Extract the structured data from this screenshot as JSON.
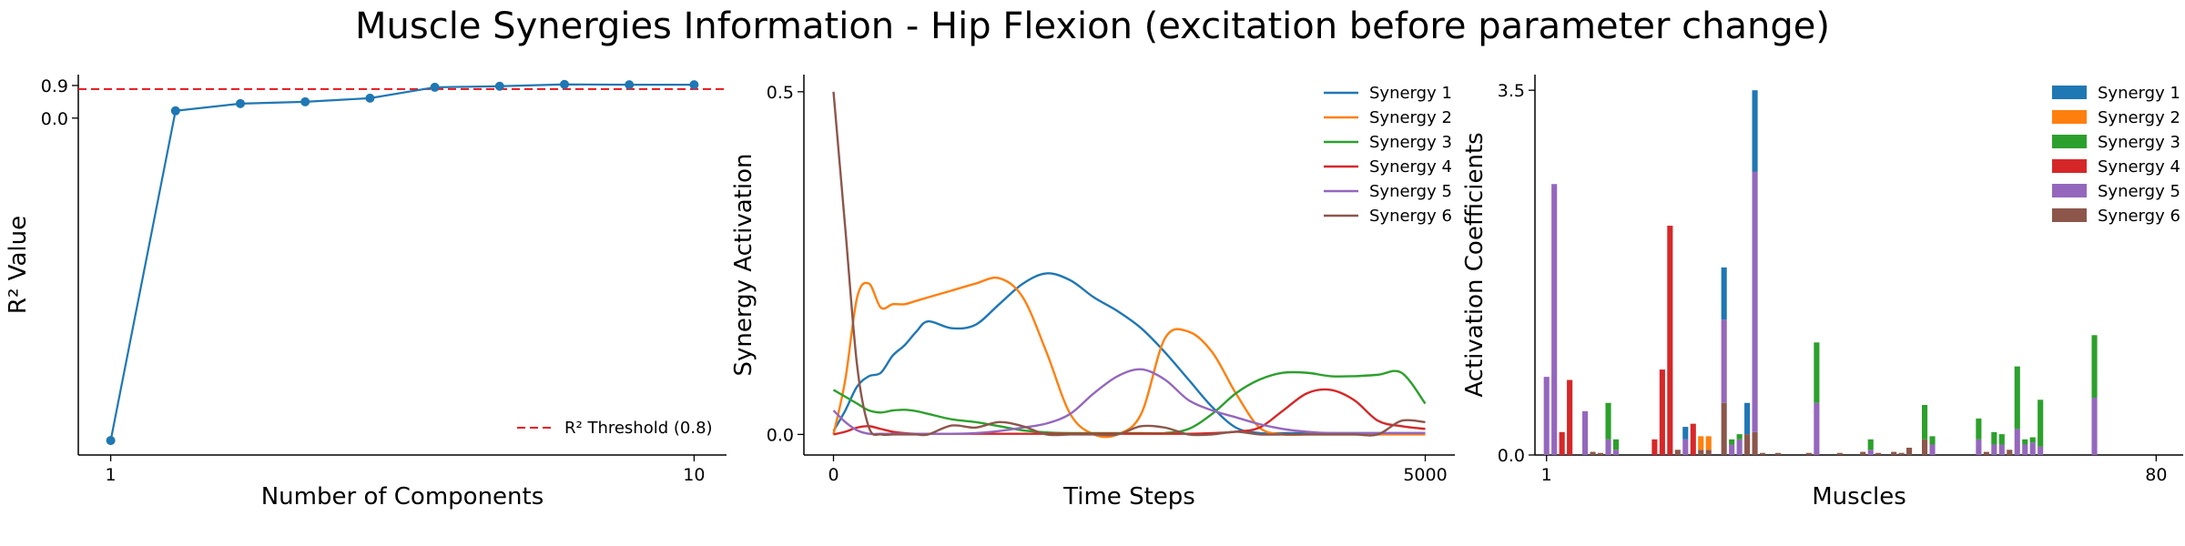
{
  "title": "Muscle Synergies Information - Hip Flexion (excitation before parameter change)",
  "colors": {
    "blue": "#1f77b4",
    "orange": "#ff7f0e",
    "green": "#2ca02c",
    "red": "#d62728",
    "purple": "#9467bd",
    "brown": "#8c564b",
    "threshold": "#e8141c",
    "axis": "#000000"
  },
  "chart_data": [
    {
      "type": "line",
      "title": "",
      "xlabel": "Number of Components",
      "ylabel": "R² Value",
      "xticks": [
        "1",
        "10"
      ],
      "yticks": [
        "0.0",
        "0.9"
      ],
      "x": [
        1,
        2,
        3,
        4,
        5,
        6,
        7,
        8,
        9,
        10
      ],
      "series": [
        {
          "values": [
            -8.9,
            0.2,
            0.4,
            0.45,
            0.55,
            0.85,
            0.88,
            0.93,
            0.92,
            0.92
          ]
        }
      ],
      "threshold": {
        "value": 0.8,
        "label": "R² Threshold (0.8)"
      },
      "xlim": [
        0.5,
        10.5
      ],
      "ylim": [
        -9.3,
        1.2
      ],
      "grid": false,
      "legend": "bottom-right"
    },
    {
      "type": "line",
      "title": "",
      "xlabel": "Time Steps",
      "ylabel": "Synergy Activation",
      "xticks": [
        "0",
        "5000"
      ],
      "yticks": [
        "0.0",
        "0.5"
      ],
      "x": [
        0,
        100,
        200,
        300,
        400,
        500,
        600,
        700,
        800,
        1000,
        1200,
        1400,
        1600,
        1800,
        2000,
        2200,
        2400,
        2600,
        2800,
        3000,
        3200,
        3400,
        3600,
        3800,
        4000,
        4200,
        4400,
        4600,
        4800,
        5000
      ],
      "series": [
        {
          "name": "Synergy 1",
          "values": [
            0.005,
            0.035,
            0.07,
            0.085,
            0.09,
            0.115,
            0.13,
            0.15,
            0.165,
            0.155,
            0.16,
            0.19,
            0.22,
            0.235,
            0.225,
            0.2,
            0.18,
            0.155,
            0.12,
            0.08,
            0.04,
            0.01,
            0.002,
            0.002,
            0.002,
            0.002,
            0.002,
            0.002,
            0.002,
            0.002
          ]
        },
        {
          "name": "Synergy 2",
          "values": [
            0.0,
            0.08,
            0.2,
            0.22,
            0.185,
            0.19,
            0.19,
            0.195,
            0.2,
            0.21,
            0.22,
            0.228,
            0.2,
            0.12,
            0.03,
            0.0,
            0.0,
            0.03,
            0.14,
            0.15,
            0.12,
            0.06,
            0.01,
            0.0,
            0.0,
            0.0,
            0.0,
            0.0,
            0.0,
            0.0
          ]
        },
        {
          "name": "Synergy 3",
          "values": [
            0.065,
            0.055,
            0.045,
            0.035,
            0.032,
            0.035,
            0.036,
            0.034,
            0.03,
            0.022,
            0.018,
            0.012,
            0.006,
            0.003,
            0.002,
            0.002,
            0.002,
            0.002,
            0.002,
            0.008,
            0.03,
            0.06,
            0.08,
            0.09,
            0.09,
            0.085,
            0.085,
            0.087,
            0.09,
            0.045
          ]
        },
        {
          "name": "Synergy 4",
          "values": [
            0.0,
            0.004,
            0.01,
            0.012,
            0.008,
            0.004,
            0.002,
            0.001,
            0.001,
            0.001,
            0.001,
            0.001,
            0.001,
            0.001,
            0.001,
            0.001,
            0.001,
            0.001,
            0.001,
            0.001,
            0.002,
            0.004,
            0.01,
            0.035,
            0.06,
            0.065,
            0.05,
            0.02,
            0.012,
            0.008
          ]
        },
        {
          "name": "Synergy 5",
          "values": [
            0.035,
            0.018,
            0.006,
            0.001,
            0.001,
            0.001,
            0.001,
            0.001,
            0.001,
            0.001,
            0.002,
            0.005,
            0.01,
            0.016,
            0.03,
            0.06,
            0.085,
            0.095,
            0.08,
            0.05,
            0.035,
            0.025,
            0.015,
            0.008,
            0.004,
            0.002,
            0.002,
            0.002,
            0.002,
            0.002
          ]
        },
        {
          "name": "Synergy 6",
          "values": [
            0.5,
            0.3,
            0.1,
            0.01,
            0.0,
            0.0,
            0.0,
            0.0,
            0.0,
            0.013,
            0.01,
            0.018,
            0.012,
            0.0,
            0.0,
            0.0,
            0.0,
            0.012,
            0.01,
            0.0,
            0.0,
            0.004,
            0.0,
            0.0,
            0.0,
            0.0,
            0.0,
            0.0,
            0.02,
            0.018
          ]
        }
      ],
      "xlim": [
        -250,
        5250
      ],
      "ylim": [
        -0.03,
        0.525
      ],
      "grid": false,
      "legend": "top-right"
    },
    {
      "type": "bar",
      "title": "",
      "xlabel": "Muscles",
      "ylabel": "Activation Coefficients",
      "xticks": [
        "1",
        "80"
      ],
      "yticks": [
        "0.0",
        "3.5"
      ],
      "stacked": true,
      "bars": [
        {
          "muscle": 1,
          "series": "Synergy 5",
          "value": 0.75
        },
        {
          "muscle": 2,
          "series": "Synergy 5",
          "value": 2.6
        },
        {
          "muscle": 3,
          "series": "Synergy 4",
          "value": 0.22
        },
        {
          "muscle": 4,
          "series": "Synergy 4",
          "value": 0.72
        },
        {
          "muscle": 6,
          "series": "Synergy 5",
          "value": 0.42
        },
        {
          "muscle": 7,
          "series": "Synergy 6",
          "value": 0.03
        },
        {
          "muscle": 8,
          "series": "Synergy 6",
          "value": 0.02
        },
        {
          "muscle": 9,
          "series": "Synergy 5",
          "value": 0.15
        },
        {
          "muscle": 9,
          "series": "Synergy 3",
          "value": 0.35
        },
        {
          "muscle": 10,
          "series": "Synergy 5",
          "value": 0.05
        },
        {
          "muscle": 10,
          "series": "Synergy 3",
          "value": 0.1
        },
        {
          "muscle": 15,
          "series": "Synergy 4",
          "value": 0.15
        },
        {
          "muscle": 16,
          "series": "Synergy 4",
          "value": 0.82
        },
        {
          "muscle": 17,
          "series": "Synergy 4",
          "value": 2.2
        },
        {
          "muscle": 18,
          "series": "Synergy 6",
          "value": 0.05
        },
        {
          "muscle": 19,
          "series": "Synergy 5",
          "value": 0.15
        },
        {
          "muscle": 19,
          "series": "Synergy 1",
          "value": 0.12
        },
        {
          "muscle": 20,
          "series": "Synergy 4",
          "value": 0.3
        },
        {
          "muscle": 21,
          "series": "Synergy 6",
          "value": 0.05
        },
        {
          "muscle": 21,
          "series": "Synergy 2",
          "value": 0.13
        },
        {
          "muscle": 22,
          "series": "Synergy 6",
          "value": 0.05
        },
        {
          "muscle": 22,
          "series": "Synergy 2",
          "value": 0.13
        },
        {
          "muscle": 24,
          "series": "Synergy 6",
          "value": 0.5
        },
        {
          "muscle": 24,
          "series": "Synergy 5",
          "value": 0.8
        },
        {
          "muscle": 24,
          "series": "Synergy 1",
          "value": 0.5
        },
        {
          "muscle": 25,
          "series": "Synergy 5",
          "value": 0.1
        },
        {
          "muscle": 25,
          "series": "Synergy 3",
          "value": 0.05
        },
        {
          "muscle": 26,
          "series": "Synergy 5",
          "value": 0.15
        },
        {
          "muscle": 26,
          "series": "Synergy 3",
          "value": 0.05
        },
        {
          "muscle": 27,
          "series": "Synergy 6",
          "value": 0.2
        },
        {
          "muscle": 27,
          "series": "Synergy 1",
          "value": 0.3
        },
        {
          "muscle": 28,
          "series": "Synergy 6",
          "value": 0.22
        },
        {
          "muscle": 28,
          "series": "Synergy 5",
          "value": 2.5
        },
        {
          "muscle": 28,
          "series": "Synergy 1",
          "value": 0.78
        },
        {
          "muscle": 29,
          "series": "Synergy 6",
          "value": 0.02
        },
        {
          "muscle": 31,
          "series": "Synergy 6",
          "value": 0.02
        },
        {
          "muscle": 35,
          "series": "Synergy 6",
          "value": 0.02
        },
        {
          "muscle": 36,
          "series": "Synergy 5",
          "value": 0.5
        },
        {
          "muscle": 36,
          "series": "Synergy 3",
          "value": 0.58
        },
        {
          "muscle": 39,
          "series": "Synergy 6",
          "value": 0.02
        },
        {
          "muscle": 42,
          "series": "Synergy 6",
          "value": 0.03
        },
        {
          "muscle": 43,
          "series": "Synergy 5",
          "value": 0.05
        },
        {
          "muscle": 43,
          "series": "Synergy 3",
          "value": 0.1
        },
        {
          "muscle": 44,
          "series": "Synergy 6",
          "value": 0.02
        },
        {
          "muscle": 46,
          "series": "Synergy 6",
          "value": 0.03
        },
        {
          "muscle": 47,
          "series": "Synergy 6",
          "value": 0.02
        },
        {
          "muscle": 48,
          "series": "Synergy 6",
          "value": 0.07
        },
        {
          "muscle": 50,
          "series": "Synergy 6",
          "value": 0.15
        },
        {
          "muscle": 50,
          "series": "Synergy 3",
          "value": 0.33
        },
        {
          "muscle": 51,
          "series": "Synergy 5",
          "value": 0.1
        },
        {
          "muscle": 51,
          "series": "Synergy 3",
          "value": 0.08
        },
        {
          "muscle": 57,
          "series": "Synergy 5",
          "value": 0.15
        },
        {
          "muscle": 57,
          "series": "Synergy 3",
          "value": 0.2
        },
        {
          "muscle": 58,
          "series": "Synergy 6",
          "value": 0.03
        },
        {
          "muscle": 59,
          "series": "Synergy 5",
          "value": 0.1
        },
        {
          "muscle": 59,
          "series": "Synergy 3",
          "value": 0.12
        },
        {
          "muscle": 60,
          "series": "Synergy 5",
          "value": 0.1
        },
        {
          "muscle": 60,
          "series": "Synergy 3",
          "value": 0.1
        },
        {
          "muscle": 61,
          "series": "Synergy 6",
          "value": 0.05
        },
        {
          "muscle": 62,
          "series": "Synergy 5",
          "value": 0.25
        },
        {
          "muscle": 62,
          "series": "Synergy 3",
          "value": 0.6
        },
        {
          "muscle": 63,
          "series": "Synergy 5",
          "value": 0.1
        },
        {
          "muscle": 63,
          "series": "Synergy 3",
          "value": 0.05
        },
        {
          "muscle": 64,
          "series": "Synergy 5",
          "value": 0.12
        },
        {
          "muscle": 64,
          "series": "Synergy 3",
          "value": 0.05
        },
        {
          "muscle": 65,
          "series": "Synergy 5",
          "value": 0.08
        },
        {
          "muscle": 65,
          "series": "Synergy 3",
          "value": 0.45
        },
        {
          "muscle": 72,
          "series": "Synergy 5",
          "value": 0.55
        },
        {
          "muscle": 72,
          "series": "Synergy 3",
          "value": 0.6
        }
      ],
      "series_names": [
        "Synergy 1",
        "Synergy 2",
        "Synergy 3",
        "Synergy 4",
        "Synergy 5",
        "Synergy 6"
      ],
      "xlim": [
        -0.5,
        83.5
      ],
      "ylim": [
        0,
        3.65
      ],
      "grid": false,
      "legend": "top-right"
    }
  ]
}
